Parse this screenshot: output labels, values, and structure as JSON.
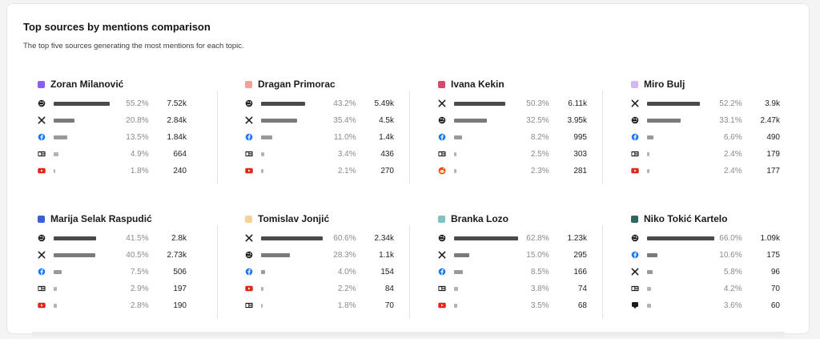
{
  "header": {
    "title": "Top sources by mentions comparison",
    "subtitle": "The top five sources generating the most mentions for each topic."
  },
  "people": [
    {
      "name": "Zoran Milanović",
      "color": "#8b5cf6",
      "sources": [
        {
          "icon": "web-globe-icon",
          "pct": "55.2%",
          "value": 55.2,
          "count": "7.52k"
        },
        {
          "icon": "x-icon",
          "pct": "20.8%",
          "value": 20.8,
          "count": "2.84k"
        },
        {
          "icon": "facebook-icon",
          "pct": "13.5%",
          "value": 13.5,
          "count": "1.84k"
        },
        {
          "icon": "news-icon",
          "pct": "4.9%",
          "value": 4.9,
          "count": "664"
        },
        {
          "icon": "youtube-icon",
          "pct": "1.8%",
          "value": 1.8,
          "count": "240"
        }
      ]
    },
    {
      "name": "Dragan Primorac",
      "color": "#f4a09a",
      "sources": [
        {
          "icon": "web-globe-icon",
          "pct": "43.2%",
          "value": 43.2,
          "count": "5.49k"
        },
        {
          "icon": "x-icon",
          "pct": "35.4%",
          "value": 35.4,
          "count": "4.5k"
        },
        {
          "icon": "facebook-icon",
          "pct": "11.0%",
          "value": 11.0,
          "count": "1.4k"
        },
        {
          "icon": "news-icon",
          "pct": "3.4%",
          "value": 3.4,
          "count": "436"
        },
        {
          "icon": "youtube-icon",
          "pct": "2.1%",
          "value": 2.1,
          "count": "270"
        }
      ]
    },
    {
      "name": "Ivana Kekin",
      "color": "#d9476a",
      "sources": [
        {
          "icon": "x-icon",
          "pct": "50.3%",
          "value": 50.3,
          "count": "6.11k"
        },
        {
          "icon": "web-globe-icon",
          "pct": "32.5%",
          "value": 32.5,
          "count": "3.95k"
        },
        {
          "icon": "facebook-icon",
          "pct": "8.2%",
          "value": 8.2,
          "count": "995"
        },
        {
          "icon": "news-icon",
          "pct": "2.5%",
          "value": 2.5,
          "count": "303"
        },
        {
          "icon": "reddit-icon",
          "pct": "2.3%",
          "value": 2.3,
          "count": "281"
        }
      ]
    },
    {
      "name": "Miro Bulj",
      "color": "#d4b8f5",
      "sources": [
        {
          "icon": "x-icon",
          "pct": "52.2%",
          "value": 52.2,
          "count": "3.9k"
        },
        {
          "icon": "web-globe-icon",
          "pct": "33.1%",
          "value": 33.1,
          "count": "2.47k"
        },
        {
          "icon": "facebook-icon",
          "pct": "6.6%",
          "value": 6.6,
          "count": "490"
        },
        {
          "icon": "news-icon",
          "pct": "2.4%",
          "value": 2.4,
          "count": "179"
        },
        {
          "icon": "youtube-icon",
          "pct": "2.4%",
          "value": 2.4,
          "count": "177"
        }
      ]
    },
    {
      "name": "Marija Selak Raspudić",
      "color": "#3b5fd6",
      "sources": [
        {
          "icon": "web-globe-icon",
          "pct": "41.5%",
          "value": 41.5,
          "count": "2.8k"
        },
        {
          "icon": "x-icon",
          "pct": "40.5%",
          "value": 40.5,
          "count": "2.73k"
        },
        {
          "icon": "facebook-icon",
          "pct": "7.5%",
          "value": 7.5,
          "count": "506"
        },
        {
          "icon": "news-icon",
          "pct": "2.9%",
          "value": 2.9,
          "count": "197"
        },
        {
          "icon": "youtube-icon",
          "pct": "2.8%",
          "value": 2.8,
          "count": "190"
        }
      ]
    },
    {
      "name": "Tomislav Jonjić",
      "color": "#f7d19a",
      "sources": [
        {
          "icon": "x-icon",
          "pct": "60.6%",
          "value": 60.6,
          "count": "2.34k"
        },
        {
          "icon": "web-globe-icon",
          "pct": "28.3%",
          "value": 28.3,
          "count": "1.1k"
        },
        {
          "icon": "facebook-icon",
          "pct": "4.0%",
          "value": 4.0,
          "count": "154"
        },
        {
          "icon": "youtube-icon",
          "pct": "2.2%",
          "value": 2.2,
          "count": "84"
        },
        {
          "icon": "news-icon",
          "pct": "1.8%",
          "value": 1.8,
          "count": "70"
        }
      ]
    },
    {
      "name": "Branka Lozo",
      "color": "#7cc4c4",
      "sources": [
        {
          "icon": "web-globe-icon",
          "pct": "62.8%",
          "value": 62.8,
          "count": "1.23k"
        },
        {
          "icon": "x-icon",
          "pct": "15.0%",
          "value": 15.0,
          "count": "295"
        },
        {
          "icon": "facebook-icon",
          "pct": "8.5%",
          "value": 8.5,
          "count": "166"
        },
        {
          "icon": "news-icon",
          "pct": "3.8%",
          "value": 3.8,
          "count": "74"
        },
        {
          "icon": "youtube-icon",
          "pct": "3.5%",
          "value": 3.5,
          "count": "68"
        }
      ]
    },
    {
      "name": "Niko Tokić Kartelo",
      "color": "#2f6660",
      "sources": [
        {
          "icon": "web-globe-icon",
          "pct": "66.0%",
          "value": 66.0,
          "count": "1.09k"
        },
        {
          "icon": "facebook-icon",
          "pct": "10.6%",
          "value": 10.6,
          "count": "175"
        },
        {
          "icon": "x-icon",
          "pct": "5.8%",
          "value": 5.8,
          "count": "96"
        },
        {
          "icon": "news-icon",
          "pct": "4.2%",
          "value": 4.2,
          "count": "70"
        },
        {
          "icon": "podcast-icon",
          "pct": "3.6%",
          "value": 3.6,
          "count": "60"
        }
      ]
    }
  ]
}
